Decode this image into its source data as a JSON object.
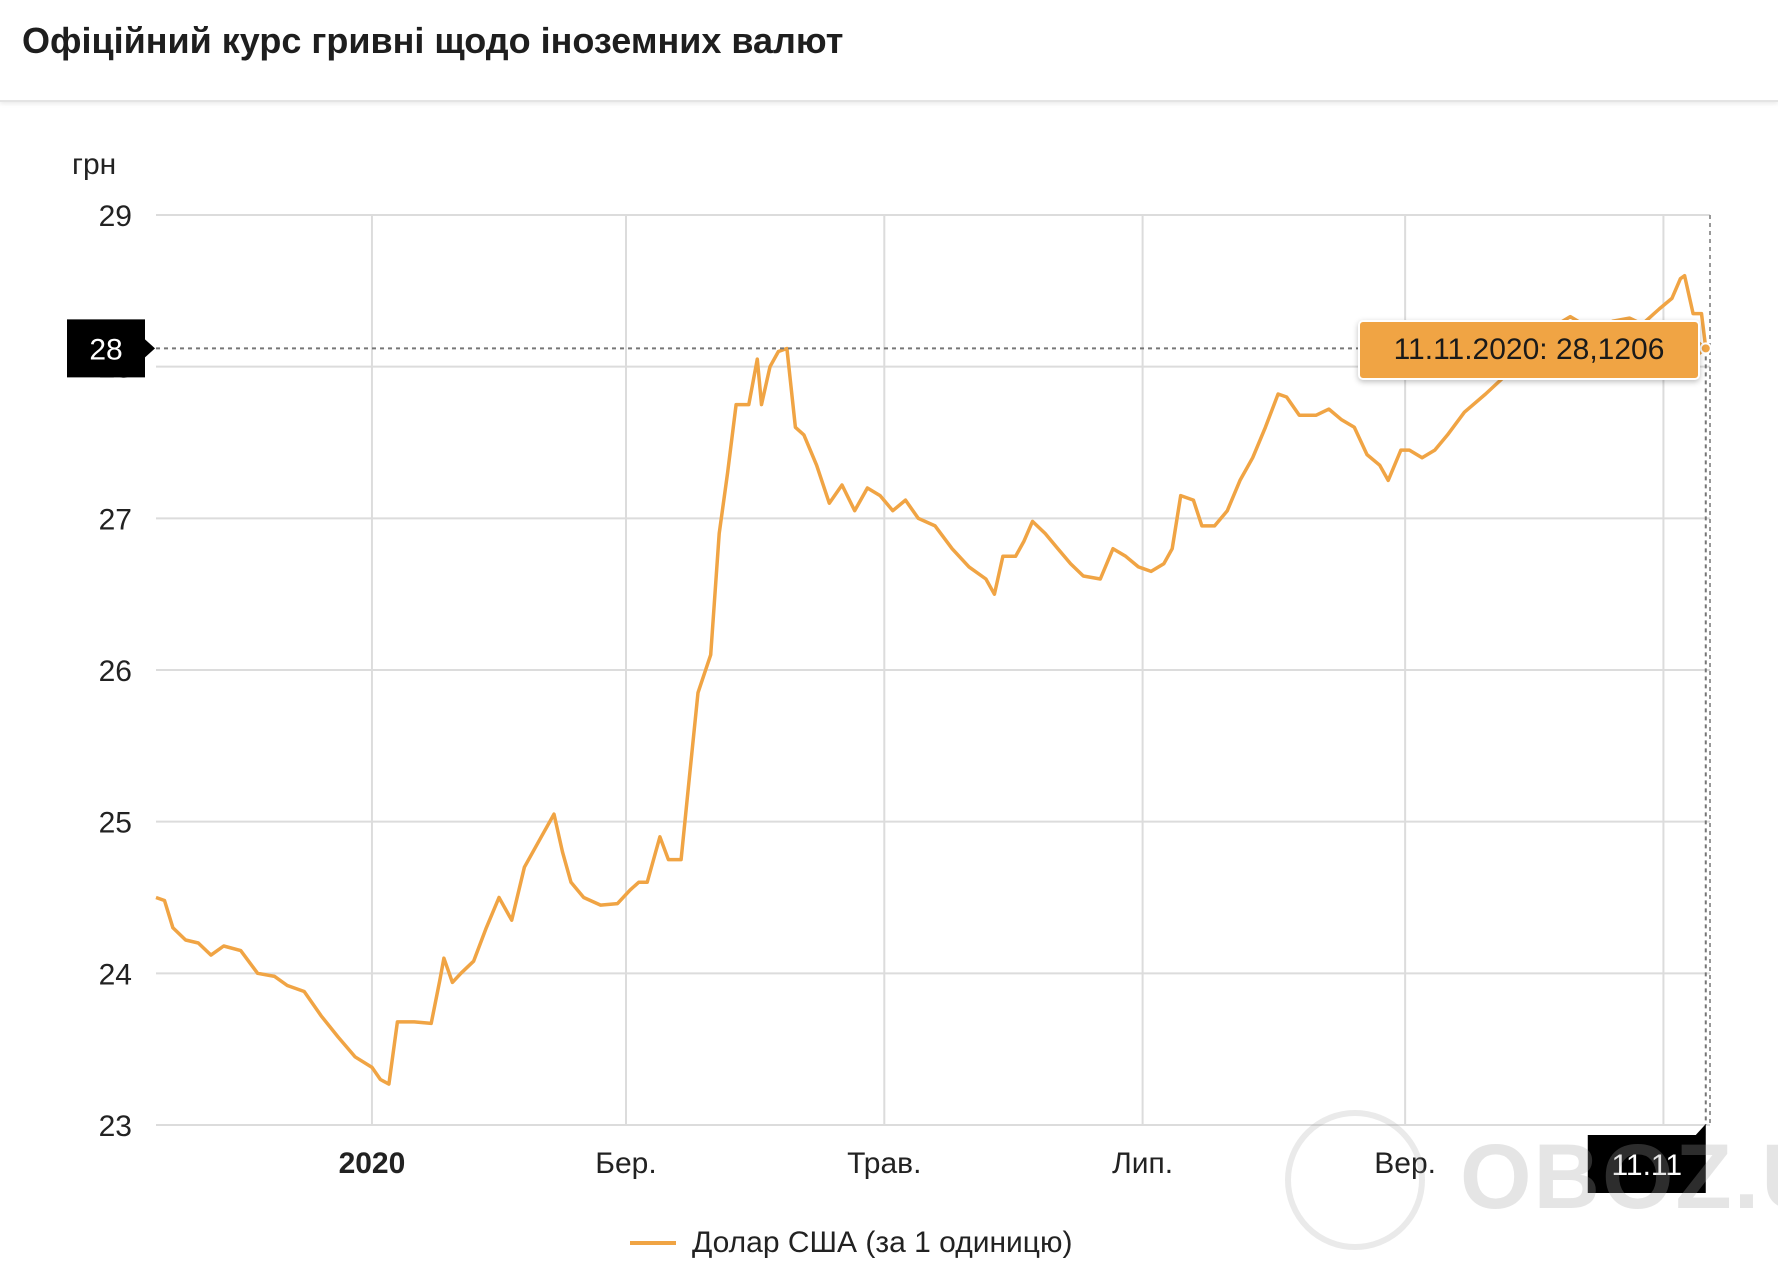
{
  "header": {
    "title": "Офіційний курс гривні щодо іноземних валют"
  },
  "unit_label": "грн",
  "watermark": "OBOZ.UA",
  "tooltip": {
    "text": "11.11.2020: 28,1206"
  },
  "colors": {
    "line": "#f0a444",
    "marker_bg": "#000000",
    "grid": "#dcdcdc"
  },
  "chart_data": {
    "type": "line",
    "title": "Офіційний курс гривні щодо іноземних валют",
    "ylabel": "грн",
    "ylim": [
      23,
      29
    ],
    "y_ticks": [
      "23",
      "24",
      "25",
      "26",
      "27",
      "28",
      "29"
    ],
    "x_ticks": [
      {
        "date": "2020-01-01",
        "label": "2020",
        "bold": true
      },
      {
        "date": "2020-03-01",
        "label": "Бер.",
        "bold": false
      },
      {
        "date": "2020-05-01",
        "label": "Трав.",
        "bold": false
      },
      {
        "date": "2020-07-01",
        "label": "Лип.",
        "bold": false
      },
      {
        "date": "2020-09-01",
        "label": "Вер.",
        "bold": false
      },
      {
        "date": "2020-11-01",
        "label": "",
        "bold": false
      }
    ],
    "x_range": [
      "2019-11-11",
      "2020-11-12"
    ],
    "crosshair": {
      "date": "2020-11-11",
      "value": 28.1206,
      "y_label": "28",
      "x_label": "11.11"
    },
    "series": [
      {
        "name": "Долар США (за 1 одиницю)",
        "points": [
          [
            "2019-11-11",
            24.5
          ],
          [
            "2019-11-13",
            24.48
          ],
          [
            "2019-11-15",
            24.3
          ],
          [
            "2019-11-18",
            24.22
          ],
          [
            "2019-11-21",
            24.2
          ],
          [
            "2019-11-24",
            24.12
          ],
          [
            "2019-11-27",
            24.18
          ],
          [
            "2019-12-01",
            24.15
          ],
          [
            "2019-12-05",
            24.0
          ],
          [
            "2019-12-09",
            23.98
          ],
          [
            "2019-12-12",
            23.92
          ],
          [
            "2019-12-16",
            23.88
          ],
          [
            "2019-12-20",
            23.72
          ],
          [
            "2019-12-24",
            23.58
          ],
          [
            "2019-12-28",
            23.45
          ],
          [
            "2020-01-01",
            23.38
          ],
          [
            "2020-01-03",
            23.3
          ],
          [
            "2020-01-05",
            23.27
          ],
          [
            "2020-01-07",
            23.68
          ],
          [
            "2020-01-11",
            23.68
          ],
          [
            "2020-01-15",
            23.67
          ],
          [
            "2020-01-17",
            23.95
          ],
          [
            "2020-01-18",
            24.1
          ],
          [
            "2020-01-20",
            23.94
          ],
          [
            "2020-01-22",
            24.0
          ],
          [
            "2020-01-25",
            24.08
          ],
          [
            "2020-01-28",
            24.3
          ],
          [
            "2020-01-31",
            24.5
          ],
          [
            "2020-02-03",
            24.35
          ],
          [
            "2020-02-06",
            24.7
          ],
          [
            "2020-02-10",
            24.9
          ],
          [
            "2020-02-13",
            25.05
          ],
          [
            "2020-02-15",
            24.8
          ],
          [
            "2020-02-17",
            24.6
          ],
          [
            "2020-02-20",
            24.5
          ],
          [
            "2020-02-24",
            24.45
          ],
          [
            "2020-02-28",
            24.46
          ],
          [
            "2020-03-02",
            24.55
          ],
          [
            "2020-03-04",
            24.6
          ],
          [
            "2020-03-06",
            24.6
          ],
          [
            "2020-03-09",
            24.9
          ],
          [
            "2020-03-11",
            24.75
          ],
          [
            "2020-03-14",
            24.75
          ],
          [
            "2020-03-16",
            25.3
          ],
          [
            "2020-03-18",
            25.85
          ],
          [
            "2020-03-21",
            26.1
          ],
          [
            "2020-03-23",
            26.9
          ],
          [
            "2020-03-25",
            27.3
          ],
          [
            "2020-03-27",
            27.75
          ],
          [
            "2020-03-30",
            27.75
          ],
          [
            "2020-04-01",
            28.05
          ],
          [
            "2020-04-02",
            27.75
          ],
          [
            "2020-04-04",
            28.0
          ],
          [
            "2020-04-06",
            28.1
          ],
          [
            "2020-04-08",
            28.12
          ],
          [
            "2020-04-10",
            27.6
          ],
          [
            "2020-04-12",
            27.55
          ],
          [
            "2020-04-15",
            27.35
          ],
          [
            "2020-04-18",
            27.1
          ],
          [
            "2020-04-21",
            27.22
          ],
          [
            "2020-04-24",
            27.05
          ],
          [
            "2020-04-27",
            27.2
          ],
          [
            "2020-04-30",
            27.15
          ],
          [
            "2020-05-03",
            27.05
          ],
          [
            "2020-05-06",
            27.12
          ],
          [
            "2020-05-09",
            27.0
          ],
          [
            "2020-05-13",
            26.95
          ],
          [
            "2020-05-17",
            26.8
          ],
          [
            "2020-05-21",
            26.68
          ],
          [
            "2020-05-25",
            26.6
          ],
          [
            "2020-05-27",
            26.5
          ],
          [
            "2020-05-29",
            26.75
          ],
          [
            "2020-06-01",
            26.75
          ],
          [
            "2020-06-03",
            26.85
          ],
          [
            "2020-06-05",
            26.98
          ],
          [
            "2020-06-08",
            26.9
          ],
          [
            "2020-06-11",
            26.8
          ],
          [
            "2020-06-14",
            26.7
          ],
          [
            "2020-06-17",
            26.62
          ],
          [
            "2020-06-21",
            26.6
          ],
          [
            "2020-06-24",
            26.8
          ],
          [
            "2020-06-27",
            26.75
          ],
          [
            "2020-06-30",
            26.68
          ],
          [
            "2020-07-03",
            26.65
          ],
          [
            "2020-07-06",
            26.7
          ],
          [
            "2020-07-08",
            26.8
          ],
          [
            "2020-07-10",
            27.15
          ],
          [
            "2020-07-13",
            27.12
          ],
          [
            "2020-07-15",
            26.95
          ],
          [
            "2020-07-18",
            26.95
          ],
          [
            "2020-07-21",
            27.05
          ],
          [
            "2020-07-24",
            27.25
          ],
          [
            "2020-07-27",
            27.4
          ],
          [
            "2020-07-30",
            27.6
          ],
          [
            "2020-08-02",
            27.82
          ],
          [
            "2020-08-04",
            27.8
          ],
          [
            "2020-08-07",
            27.68
          ],
          [
            "2020-08-11",
            27.68
          ],
          [
            "2020-08-14",
            27.72
          ],
          [
            "2020-08-17",
            27.65
          ],
          [
            "2020-08-20",
            27.6
          ],
          [
            "2020-08-23",
            27.42
          ],
          [
            "2020-08-26",
            27.35
          ],
          [
            "2020-08-28",
            27.25
          ],
          [
            "2020-08-31",
            27.45
          ],
          [
            "2020-09-02",
            27.45
          ],
          [
            "2020-09-05",
            27.4
          ],
          [
            "2020-09-08",
            27.45
          ],
          [
            "2020-09-11",
            27.55
          ],
          [
            "2020-09-15",
            27.7
          ],
          [
            "2020-09-20",
            27.82
          ],
          [
            "2020-09-25",
            27.95
          ],
          [
            "2020-09-29",
            28.1
          ],
          [
            "2020-10-03",
            28.2
          ],
          [
            "2020-10-07",
            28.28
          ],
          [
            "2020-10-10",
            28.33
          ],
          [
            "2020-10-13",
            28.28
          ],
          [
            "2020-10-17",
            28.25
          ],
          [
            "2020-10-20",
            28.3
          ],
          [
            "2020-10-24",
            28.32
          ],
          [
            "2020-10-27",
            28.28
          ],
          [
            "2020-10-31",
            28.38
          ],
          [
            "2020-11-03",
            28.45
          ],
          [
            "2020-11-05",
            28.58
          ],
          [
            "2020-11-06",
            28.6
          ],
          [
            "2020-11-08",
            28.35
          ],
          [
            "2020-11-10",
            28.35
          ],
          [
            "2020-11-11",
            28.1206
          ]
        ]
      }
    ],
    "grid": true,
    "legend": "bottom-center"
  }
}
